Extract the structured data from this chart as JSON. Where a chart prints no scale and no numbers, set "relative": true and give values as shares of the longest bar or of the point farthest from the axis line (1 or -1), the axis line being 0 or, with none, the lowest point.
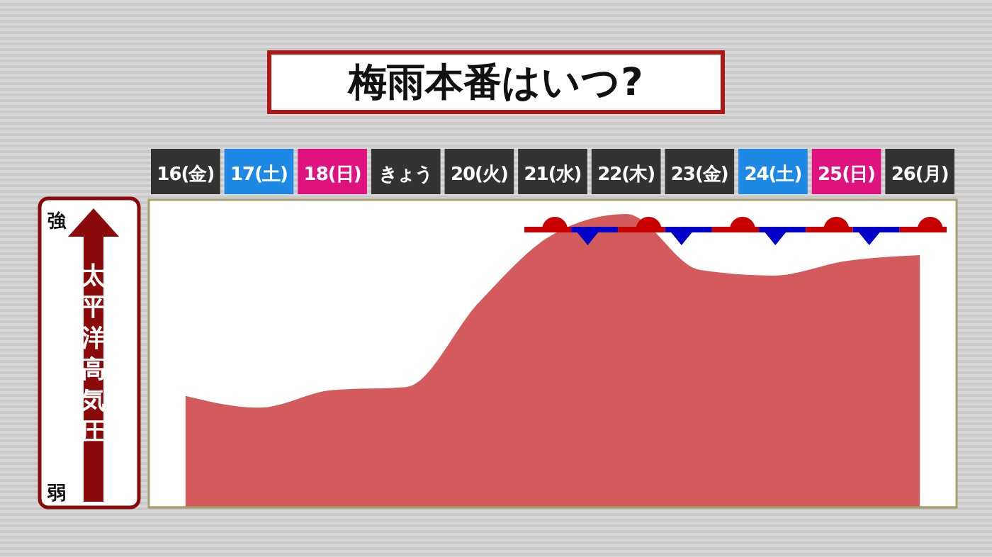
{
  "chart_data": {
    "type": "area",
    "title": "梅雨本番はいつ?",
    "ylabel": "太平洋高気圧",
    "relative": true,
    "categories": [
      "16(金)",
      "17(土)",
      "18(日)",
      "きょう",
      "20(火)",
      "21(水)",
      "22(木)",
      "23(金)",
      "24(土)",
      "25(日)",
      "26(月)"
    ],
    "series": [
      {
        "color": "#d45b5b",
        "values": [
          0.38,
          0.34,
          0.4,
          0.41,
          0.7,
          0.93,
          1,
          0.81,
          0.79,
          0.84,
          0.86
        ]
      }
    ],
    "annotations": [
      "強",
      "弱"
    ]
  }
}
